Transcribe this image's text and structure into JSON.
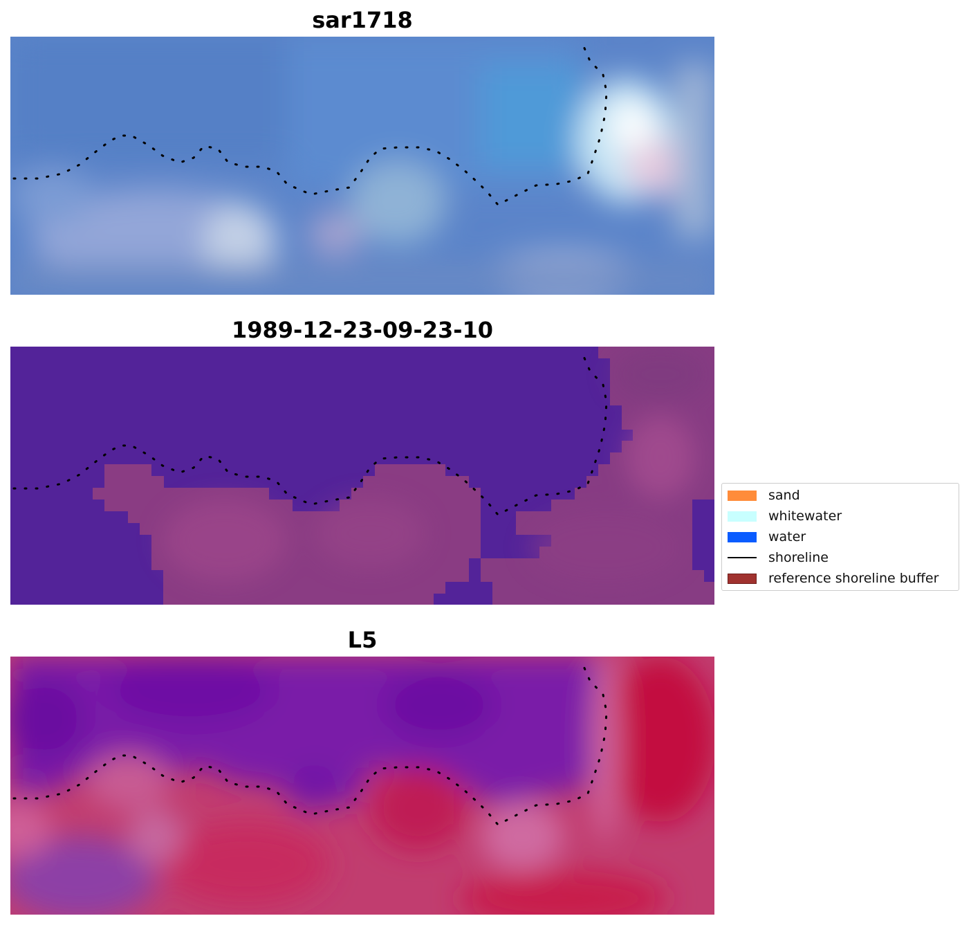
{
  "panels": [
    {
      "title": "sar1718"
    },
    {
      "title": "1989-12-23-09-23-10"
    },
    {
      "title": "L5"
    }
  ],
  "legend": {
    "items": [
      {
        "label": "sand",
        "color": "#ff8c3a",
        "kind": "patch"
      },
      {
        "label": "whitewater",
        "color": "#c8ffff",
        "kind": "patch"
      },
      {
        "label": "water",
        "color": "#0a5cff",
        "kind": "patch"
      },
      {
        "label": "shoreline",
        "color": "#000000",
        "kind": "line"
      },
      {
        "label": "reference shoreline buffer",
        "color": "#a0322f",
        "kind": "patch"
      }
    ]
  }
}
